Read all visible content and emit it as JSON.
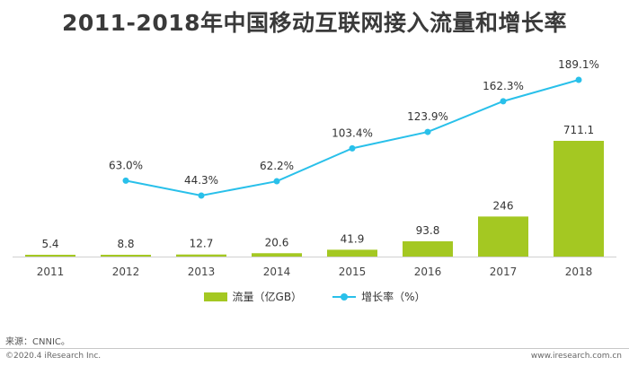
{
  "chart_data": {
    "type": "bar",
    "title": "2011-2018年中国移动互联网接入流量和增长率",
    "categories": [
      "2011",
      "2012",
      "2013",
      "2014",
      "2015",
      "2016",
      "2017",
      "2018"
    ],
    "series": [
      {
        "name": "流量（亿GB）",
        "type": "bar",
        "values": [
          5.4,
          8.8,
          12.7,
          20.6,
          41.9,
          93.8,
          246,
          711.1
        ],
        "labels": [
          "5.4",
          "8.8",
          "12.7",
          "20.6",
          "41.9",
          "93.8",
          "246",
          "711.1"
        ],
        "color": "#a4c822"
      },
      {
        "name": "增长率（%）",
        "type": "line",
        "values": [
          null,
          63.0,
          44.3,
          62.2,
          103.4,
          123.9,
          162.3,
          189.1
        ],
        "labels": [
          "",
          "63.0%",
          "44.3%",
          "62.2%",
          "103.4%",
          "123.9%",
          "162.3%",
          "189.1%"
        ],
        "color": "#29c0ea"
      }
    ],
    "legend_position": "bottom",
    "grid": false
  },
  "source": "来源：CNNIC。",
  "copyright": "©2020.4 iResearch Inc.",
  "site": "www.iresearch.com.cn"
}
